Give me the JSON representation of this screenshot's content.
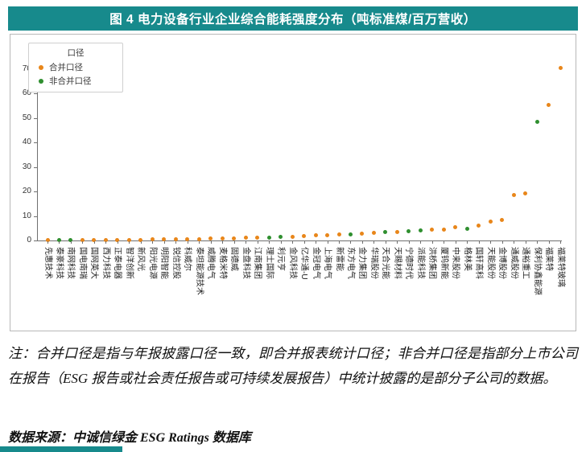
{
  "figure": {
    "title": "图 4 电力设备行业企业综合能耗强度分布（吨标准煤/百万营收）",
    "note": "注：合并口径是指与年报披露口径一致，即合并报表统计口径；非合并口径是指部分上市公司在报告（ESG 报告或社会责任报告或可持续发展报告）中统计披露的是部分子公司的数据。",
    "source": "数据来源：中诚信绿金 ESG Ratings 数据库"
  },
  "colors": {
    "title_bar": "#178A8C",
    "merged": "#E8861A",
    "unmerged": "#2F8F2F"
  },
  "legend": {
    "title": "口径",
    "items": [
      {
        "label": "合并口径",
        "color": "#E8861A"
      },
      {
        "label": "非合并口径",
        "color": "#2F8F2F"
      }
    ]
  },
  "chart_data": {
    "type": "scatter",
    "title": "电力设备行业企业综合能耗强度分布",
    "unit": "吨标准煤/百万营收",
    "xlabel": "",
    "ylabel": "",
    "ylim": [
      0,
      75
    ],
    "yticks": [
      0,
      10,
      20,
      30,
      40,
      50,
      60,
      70
    ],
    "grid": false,
    "legend_position": "upper-left",
    "series_names": [
      "合并口径",
      "非合并口径"
    ],
    "points": [
      {
        "label": "先惠技术",
        "value": 0.1,
        "series": "合并口径"
      },
      {
        "label": "泰豪科技",
        "value": 0.1,
        "series": "非合并口径"
      },
      {
        "label": "南网科技",
        "value": 0.1,
        "series": "非合并口径"
      },
      {
        "label": "国电南瑞",
        "value": 0.2,
        "series": "合并口径"
      },
      {
        "label": "国网英大",
        "value": 0.2,
        "series": "合并口径"
      },
      {
        "label": "西力科技",
        "value": 0.2,
        "series": "合并口径"
      },
      {
        "label": "正泰电器",
        "value": 0.3,
        "series": "合并口径"
      },
      {
        "label": "智洋创新",
        "value": 0.3,
        "series": "合并口径"
      },
      {
        "label": "新风光",
        "value": 0.3,
        "series": "合并口径"
      },
      {
        "label": "阳光电源",
        "value": 0.4,
        "series": "合并口径"
      },
      {
        "label": "明阳智能",
        "value": 0.4,
        "series": "合并口径"
      },
      {
        "label": "锐信控股",
        "value": 0.5,
        "series": "合并口径"
      },
      {
        "label": "科威尔",
        "value": 0.5,
        "series": "合并口径"
      },
      {
        "label": "泰坦能源技术",
        "value": 0.6,
        "series": "合并口径"
      },
      {
        "label": "威腾电气",
        "value": 0.7,
        "series": "合并口径"
      },
      {
        "label": "麦格米特",
        "value": 0.8,
        "series": "合并口径"
      },
      {
        "label": "固德威",
        "value": 0.9,
        "series": "合并口径"
      },
      {
        "label": "金盘科技",
        "value": 1.0,
        "series": "合并口径"
      },
      {
        "label": "江南集团",
        "value": 1.1,
        "series": "合并口径"
      },
      {
        "label": "理士国际",
        "value": 1.2,
        "series": "非合并口径"
      },
      {
        "label": "利元亨",
        "value": 1.4,
        "series": "非合并口径"
      },
      {
        "label": "金风科技",
        "value": 1.6,
        "series": "合并口径"
      },
      {
        "label": "亿华通-U",
        "value": 1.8,
        "series": "合并口径"
      },
      {
        "label": "金冠电气",
        "value": 2.0,
        "series": "合并口径"
      },
      {
        "label": "上海电气",
        "value": 2.2,
        "series": "合并口径"
      },
      {
        "label": "新雷能",
        "value": 2.4,
        "series": "合并口径"
      },
      {
        "label": "东方电气",
        "value": 2.6,
        "series": "非合并口径"
      },
      {
        "label": "金力集团",
        "value": 2.8,
        "series": "合并口径"
      },
      {
        "label": "华瑞股份",
        "value": 3.0,
        "series": "合并口径"
      },
      {
        "label": "天合光能",
        "value": 3.3,
        "series": "非合并口径"
      },
      {
        "label": "天赐材料",
        "value": 3.6,
        "series": "合并口径"
      },
      {
        "label": "宁德时代",
        "value": 3.9,
        "series": "非合并口径"
      },
      {
        "label": "派能科技",
        "value": 4.2,
        "series": "非合并口径"
      },
      {
        "label": "洪桥集团",
        "value": 4.4,
        "series": "合并口径"
      },
      {
        "label": "厦钨新能",
        "value": 4.6,
        "series": "合并口径"
      },
      {
        "label": "中来股份",
        "value": 5.3,
        "series": "合并口径"
      },
      {
        "label": "格林美",
        "value": 4.9,
        "series": "非合并口径"
      },
      {
        "label": "国轩高科",
        "value": 6.2,
        "series": "合并口径"
      },
      {
        "label": "天能股份",
        "value": 7.6,
        "series": "合并口径"
      },
      {
        "label": "金博股份",
        "value": 8.5,
        "series": "合并口径"
      },
      {
        "label": "通威股份",
        "value": 18.7,
        "series": "合并口径"
      },
      {
        "label": "通裕重工",
        "value": 19.1,
        "series": "合并口径"
      },
      {
        "label": "保利协鑫能源",
        "value": 48.6,
        "series": "非合并口径"
      },
      {
        "label": "福莱特",
        "value": 55.5,
        "series": "合并口径"
      },
      {
        "label": "福莱特玻璃",
        "value": 70.6,
        "series": "合并口径"
      }
    ]
  }
}
